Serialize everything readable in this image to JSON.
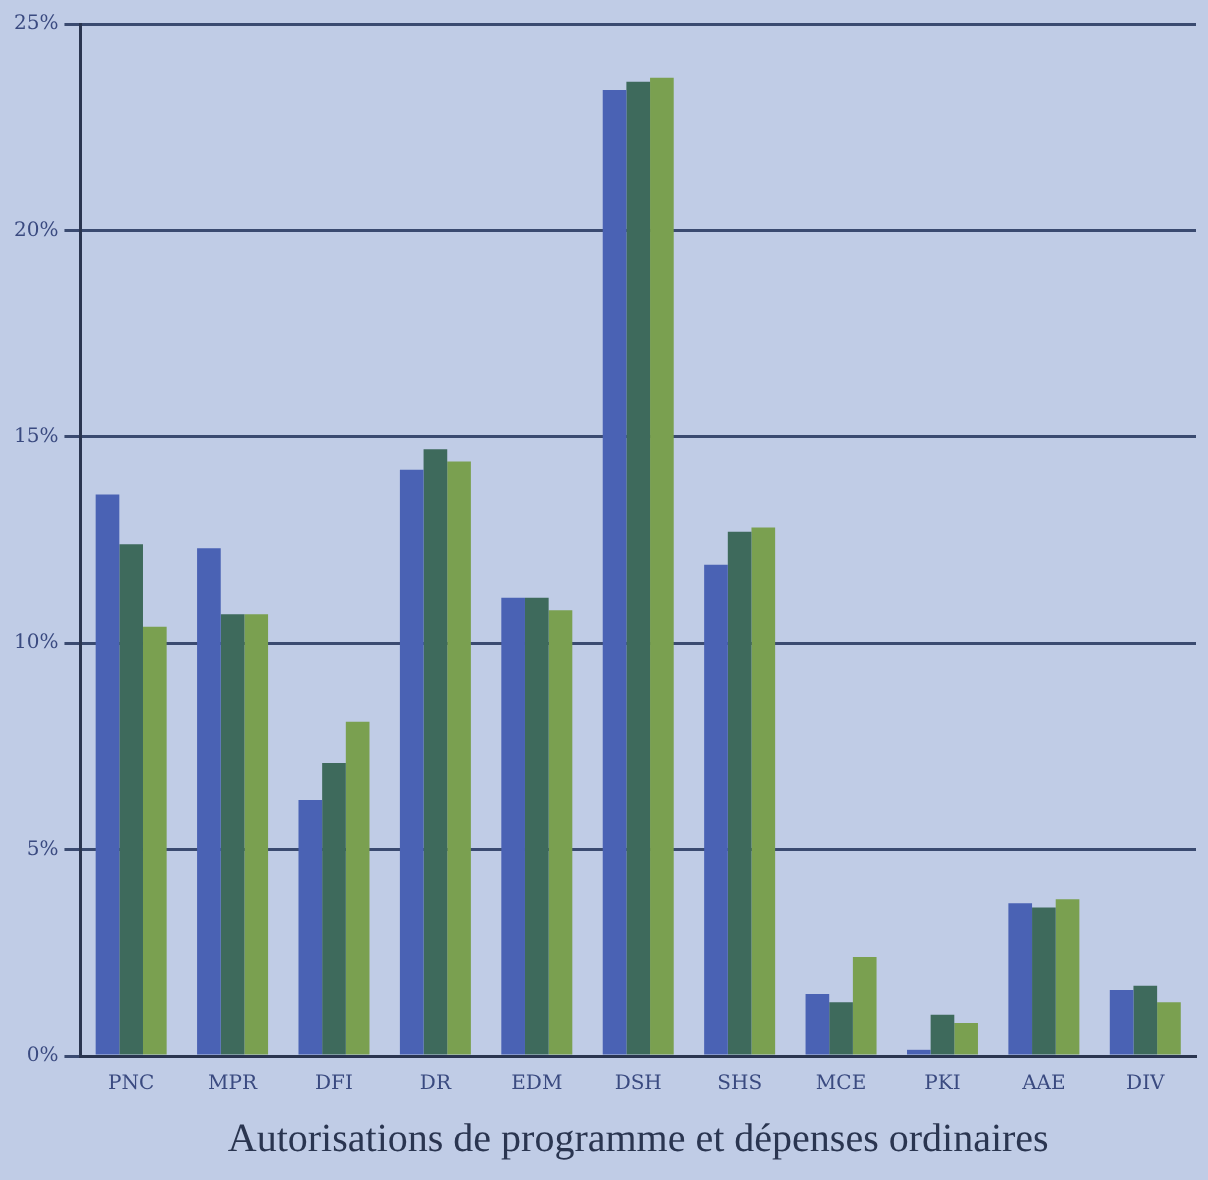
{
  "chart_data": {
    "type": "bar",
    "xlabel": "Autorisations de programme et dépenses ordinaires",
    "categories": [
      "PNC",
      "MPR",
      "DFI",
      "DR",
      "EDM",
      "DSH",
      "SHS",
      "MCE",
      "PKI",
      "AAE",
      "DIV"
    ],
    "series": [
      {
        "color": "#4a62b4",
        "values": [
          13.6,
          12.3,
          6.2,
          14.2,
          11.1,
          23.4,
          11.9,
          1.5,
          0.15,
          3.7,
          1.6
        ]
      },
      {
        "color": "#3e6a5c",
        "values": [
          12.4,
          10.7,
          7.1,
          14.7,
          11.1,
          23.6,
          12.7,
          1.3,
          1.0,
          3.6,
          1.7
        ]
      },
      {
        "color": "#7aa050",
        "values": [
          10.4,
          10.7,
          8.1,
          14.4,
          10.8,
          23.7,
          12.8,
          2.4,
          0.8,
          3.8,
          1.3
        ]
      }
    ],
    "ylim": [
      0,
      25
    ],
    "yticks": [
      {
        "value": 0,
        "label": "0%"
      },
      {
        "value": 5,
        "label": "5%"
      },
      {
        "value": 10,
        "label": "10%"
      },
      {
        "value": 15,
        "label": "15%"
      },
      {
        "value": 20,
        "label": "20%"
      },
      {
        "value": 25,
        "label": "25%"
      }
    ],
    "grid": "y",
    "legend": false
  }
}
